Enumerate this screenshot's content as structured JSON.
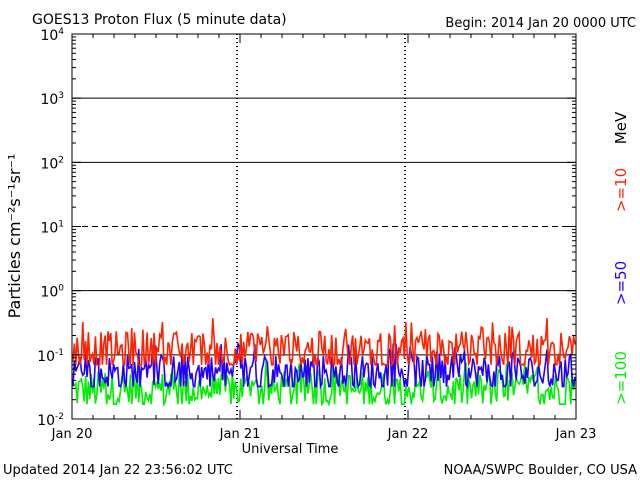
{
  "header": {
    "title": "GOES13 Proton Flux (5 minute data)",
    "begin": "Begin: 2014 Jan 20 0000 UTC"
  },
  "footer": {
    "updated": "Updated 2014 Jan 22 23:56:02 UTC",
    "credit": "NOAA/SWPC Boulder, CO USA"
  },
  "colors": {
    "ge10": "#ff2200",
    "ge50": "#2200ff",
    "ge100": "#00ee00",
    "axis": "#000000",
    "background": "#ffffff"
  },
  "chart_data": {
    "type": "line",
    "title": "GOES13 Proton Flux (5 minute data)",
    "xlabel": "Universal Time",
    "ylabel": "Particles cm⁻²s⁻¹sr⁻¹",
    "unit_label": "MeV",
    "yscale": "log",
    "ylim": [
      0.01,
      10000
    ],
    "xlim": [
      "2014-01-20 00:00",
      "2014-01-23 00:00"
    ],
    "y_ticks": [
      {
        "value": 10000,
        "base": "10",
        "exp": "4"
      },
      {
        "value": 1000,
        "base": "10",
        "exp": "3"
      },
      {
        "value": 100,
        "base": "10",
        "exp": "2"
      },
      {
        "value": 10,
        "base": "10",
        "exp": "1"
      },
      {
        "value": 1,
        "base": "10",
        "exp": "0"
      },
      {
        "value": 0.1,
        "base": "10",
        "exp": "-1"
      },
      {
        "value": 0.01,
        "base": "10",
        "exp": "-2"
      }
    ],
    "x_ticks": [
      {
        "value": "2014-01-20",
        "label": "Jan 20"
      },
      {
        "value": "2014-01-21",
        "label": "Jan 21"
      },
      {
        "value": "2014-01-22",
        "label": "Jan 22"
      },
      {
        "value": "2014-01-23",
        "label": "Jan 23"
      }
    ],
    "reference_lines": [
      {
        "value": 1000,
        "style": "solid"
      },
      {
        "value": 100,
        "style": "solid"
      },
      {
        "value": 10,
        "style": "dashed"
      },
      {
        "value": 1,
        "style": "solid"
      },
      {
        "value": 0.1,
        "style": "solid"
      }
    ],
    "series": [
      {
        "name": ">=10",
        "color": "#ff2200",
        "baseline": 0.11,
        "min": 0.07,
        "max": 0.38
      },
      {
        "name": ">=50",
        "color": "#2200ff",
        "baseline": 0.05,
        "min": 0.032,
        "max": 0.16
      },
      {
        "name": ">=100",
        "color": "#00ee00",
        "baseline": 0.028,
        "min": 0.017,
        "max": 0.08
      }
    ]
  }
}
